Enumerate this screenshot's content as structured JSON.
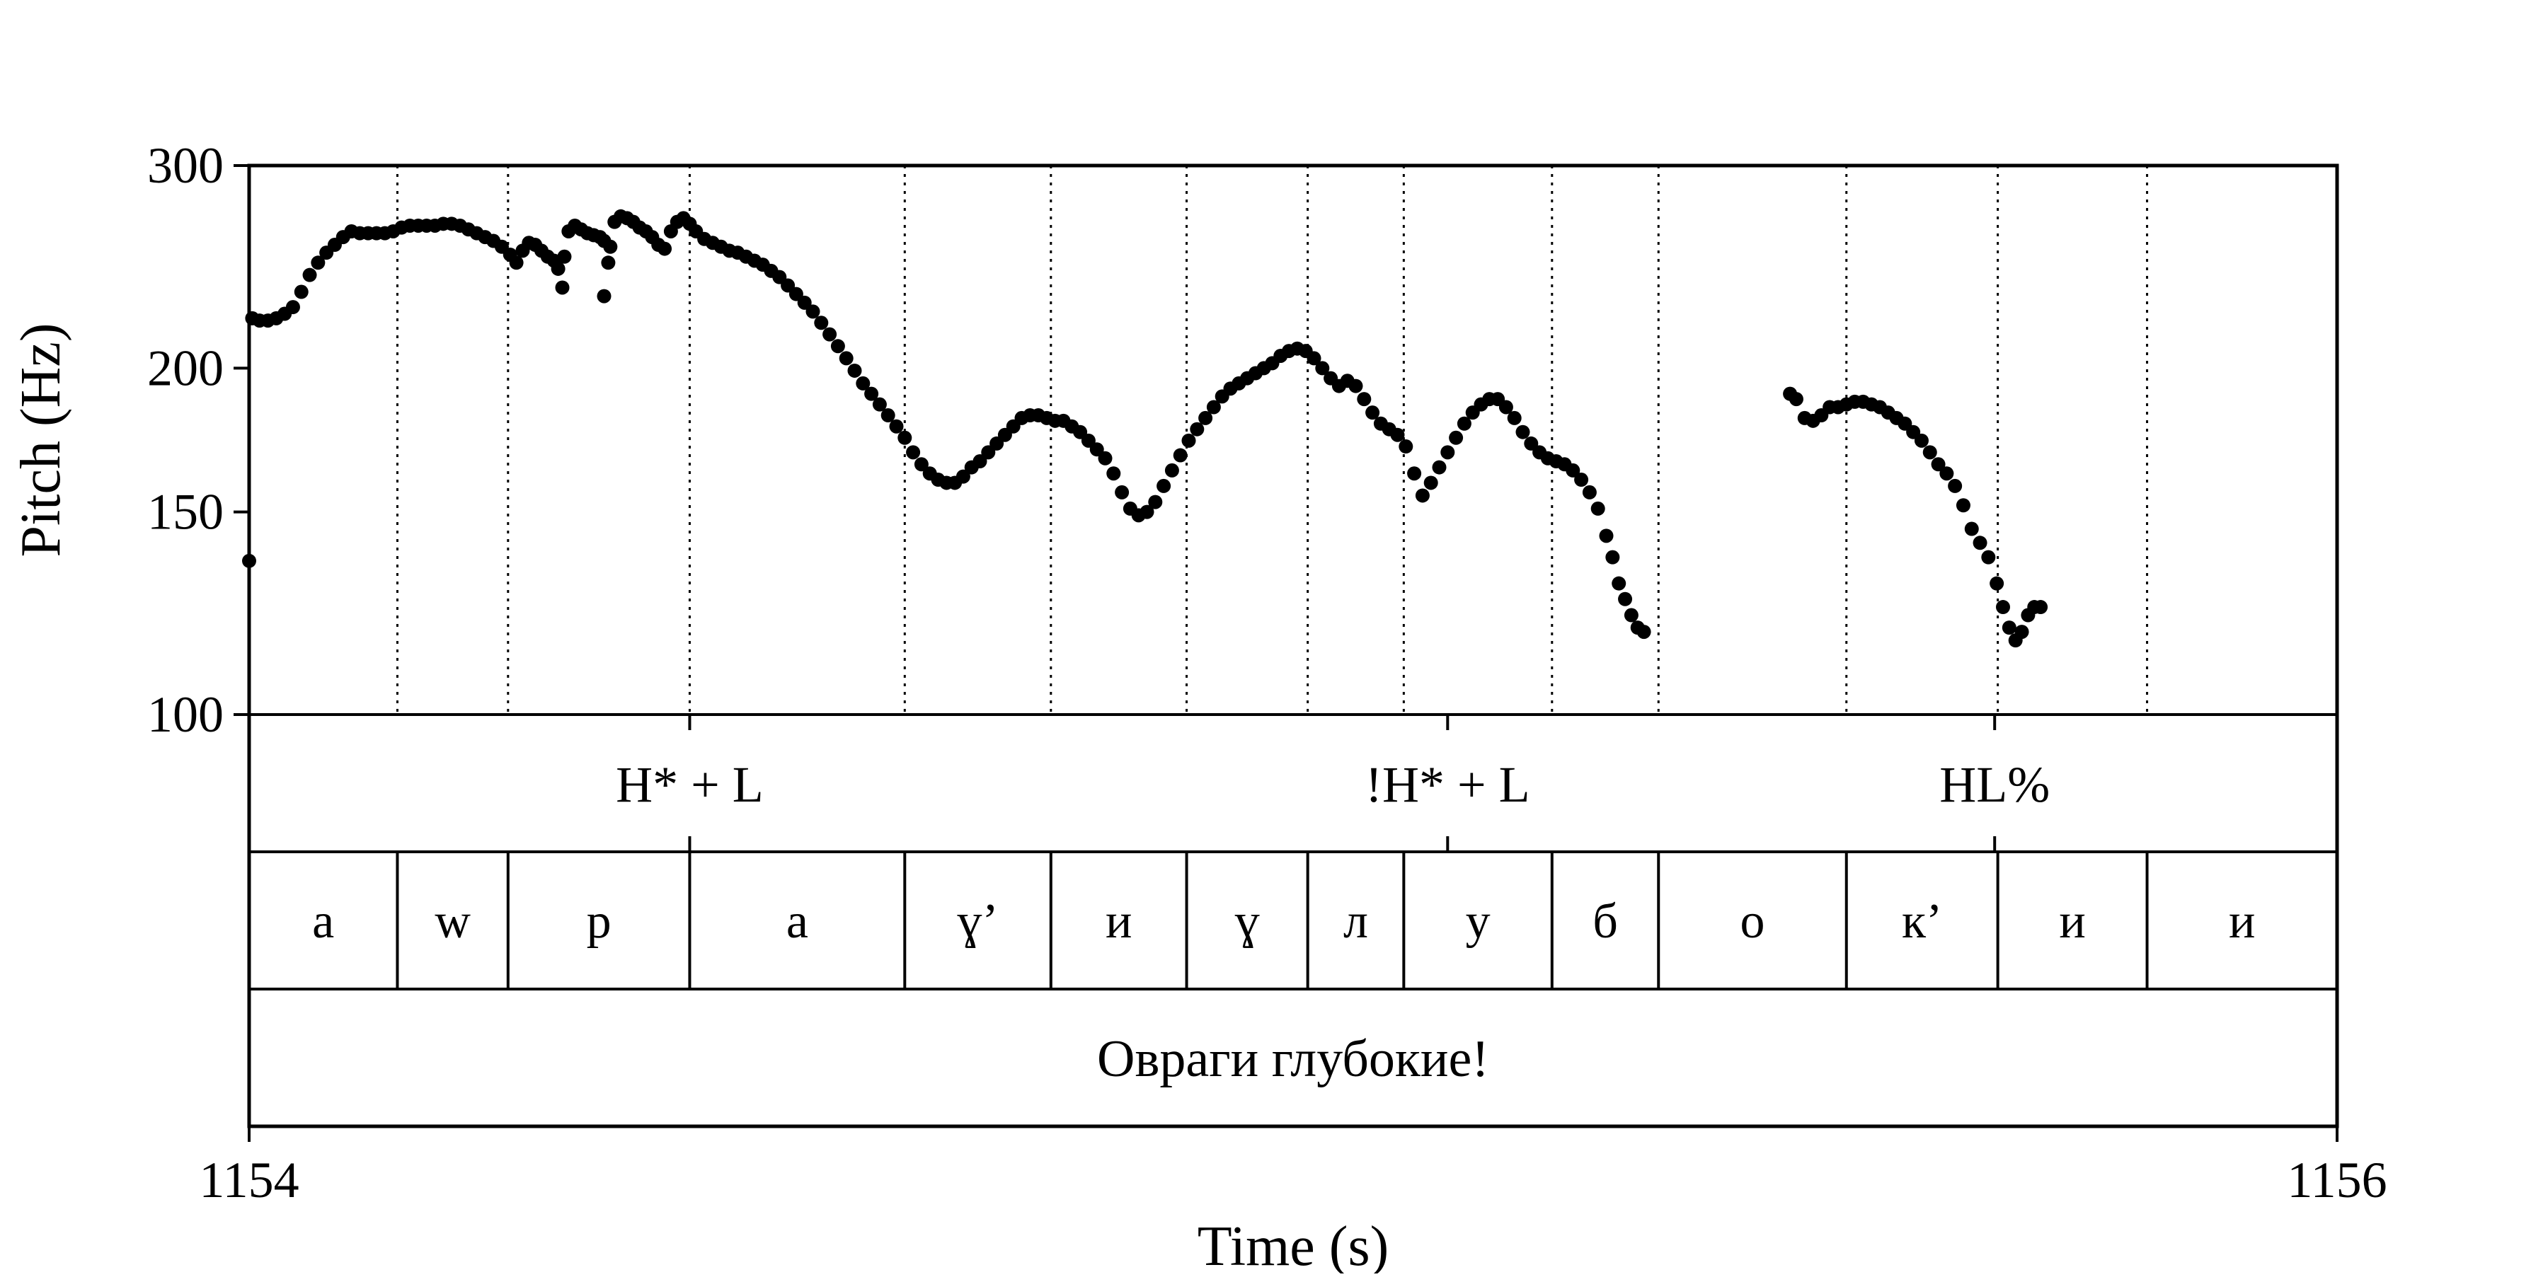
{
  "chart_data": {
    "type": "scatter",
    "title": "",
    "xlabel": "Time (s)",
    "ylabel": "Pitch (Hz)",
    "xlim": [
      1154,
      1156
    ],
    "ylim": [
      100,
      300
    ],
    "y_scale": "log",
    "x_ticks": [
      1154,
      1156
    ],
    "x_tick_labels": [
      "1154",
      "1156"
    ],
    "y_ticks": [
      100,
      150,
      200,
      300
    ],
    "y_tick_labels": [
      "100",
      "150",
      "200",
      "300"
    ],
    "grid": "vertical dotted lines at segment boundaries",
    "series": [
      {
        "points": [
          [
            1154.0,
            136
          ],
          [
            1154.003,
            221
          ],
          [
            1154.01,
            220
          ],
          [
            1154.018,
            220
          ],
          [
            1154.026,
            221
          ],
          [
            1154.034,
            223
          ],
          [
            1154.042,
            226
          ],
          [
            1154.05,
            233
          ],
          [
            1154.058,
            241
          ],
          [
            1154.066,
            247
          ],
          [
            1154.074,
            252
          ],
          [
            1154.082,
            256
          ],
          [
            1154.09,
            260
          ],
          [
            1154.098,
            263
          ],
          [
            1154.106,
            262
          ],
          [
            1154.114,
            262
          ],
          [
            1154.122,
            262
          ],
          [
            1154.13,
            262
          ],
          [
            1154.138,
            263
          ],
          [
            1154.146,
            265
          ],
          [
            1154.154,
            266
          ],
          [
            1154.162,
            266
          ],
          [
            1154.17,
            266
          ],
          [
            1154.178,
            266
          ],
          [
            1154.186,
            267
          ],
          [
            1154.194,
            267
          ],
          [
            1154.202,
            266
          ],
          [
            1154.21,
            264
          ],
          [
            1154.218,
            262
          ],
          [
            1154.226,
            260
          ],
          [
            1154.234,
            258
          ],
          [
            1154.242,
            255
          ],
          [
            1154.25,
            251
          ],
          [
            1154.256,
            247
          ],
          [
            1154.262,
            253
          ],
          [
            1154.268,
            257
          ],
          [
            1154.274,
            256
          ],
          [
            1154.28,
            253
          ],
          [
            1154.286,
            250
          ],
          [
            1154.292,
            248
          ],
          [
            1154.296,
            244
          ],
          [
            1154.3,
            235
          ],
          [
            1154.302,
            250
          ],
          [
            1154.306,
            263
          ],
          [
            1154.312,
            266
          ],
          [
            1154.318,
            264
          ],
          [
            1154.324,
            262
          ],
          [
            1154.33,
            261
          ],
          [
            1154.336,
            260
          ],
          [
            1154.34,
            258
          ],
          [
            1154.34,
            231
          ],
          [
            1154.344,
            247
          ],
          [
            1154.346,
            255
          ],
          [
            1154.35,
            268
          ],
          [
            1154.356,
            271
          ],
          [
            1154.362,
            270
          ],
          [
            1154.368,
            268
          ],
          [
            1154.374,
            265
          ],
          [
            1154.38,
            263
          ],
          [
            1154.386,
            260
          ],
          [
            1154.392,
            256
          ],
          [
            1154.398,
            254
          ],
          [
            1154.404,
            263
          ],
          [
            1154.41,
            268
          ],
          [
            1154.416,
            270
          ],
          [
            1154.422,
            267
          ],
          [
            1154.428,
            263
          ],
          [
            1154.436,
            259
          ],
          [
            1154.444,
            257
          ],
          [
            1154.452,
            255
          ],
          [
            1154.46,
            253
          ],
          [
            1154.468,
            252
          ],
          [
            1154.476,
            250
          ],
          [
            1154.484,
            248
          ],
          [
            1154.492,
            246
          ],
          [
            1154.5,
            243
          ],
          [
            1154.508,
            240
          ],
          [
            1154.516,
            236
          ],
          [
            1154.524,
            232
          ],
          [
            1154.532,
            228
          ],
          [
            1154.54,
            224
          ],
          [
            1154.548,
            219
          ],
          [
            1154.556,
            214
          ],
          [
            1154.564,
            209
          ],
          [
            1154.572,
            204
          ],
          [
            1154.58,
            199
          ],
          [
            1154.588,
            194
          ],
          [
            1154.596,
            190
          ],
          [
            1154.604,
            186
          ],
          [
            1154.612,
            182
          ],
          [
            1154.62,
            178
          ],
          [
            1154.628,
            174
          ],
          [
            1154.636,
            169
          ],
          [
            1154.644,
            165
          ],
          [
            1154.652,
            162
          ],
          [
            1154.66,
            160
          ],
          [
            1154.668,
            159
          ],
          [
            1154.676,
            159
          ],
          [
            1154.684,
            161
          ],
          [
            1154.692,
            164
          ],
          [
            1154.7,
            166
          ],
          [
            1154.708,
            169
          ],
          [
            1154.716,
            172
          ],
          [
            1154.724,
            175
          ],
          [
            1154.732,
            178
          ],
          [
            1154.74,
            181
          ],
          [
            1154.748,
            182
          ],
          [
            1154.756,
            182
          ],
          [
            1154.764,
            181
          ],
          [
            1154.772,
            180
          ],
          [
            1154.78,
            180
          ],
          [
            1154.788,
            178
          ],
          [
            1154.796,
            176
          ],
          [
            1154.804,
            173
          ],
          [
            1154.812,
            170
          ],
          [
            1154.82,
            167
          ],
          [
            1154.828,
            162
          ],
          [
            1154.836,
            156
          ],
          [
            1154.844,
            151
          ],
          [
            1154.852,
            149
          ],
          [
            1154.86,
            150
          ],
          [
            1154.868,
            153
          ],
          [
            1154.876,
            158
          ],
          [
            1154.884,
            163
          ],
          [
            1154.892,
            168
          ],
          [
            1154.9,
            173
          ],
          [
            1154.908,
            177
          ],
          [
            1154.916,
            181
          ],
          [
            1154.924,
            185
          ],
          [
            1154.932,
            189
          ],
          [
            1154.94,
            192
          ],
          [
            1154.948,
            194
          ],
          [
            1154.956,
            196
          ],
          [
            1154.964,
            198
          ],
          [
            1154.972,
            200
          ],
          [
            1154.98,
            202
          ],
          [
            1154.988,
            205
          ],
          [
            1154.996,
            207
          ],
          [
            1155.004,
            208
          ],
          [
            1155.012,
            207
          ],
          [
            1155.02,
            204
          ],
          [
            1155.028,
            200
          ],
          [
            1155.036,
            196
          ],
          [
            1155.044,
            193
          ],
          [
            1155.052,
            195
          ],
          [
            1155.06,
            193
          ],
          [
            1155.068,
            188
          ],
          [
            1155.076,
            183
          ],
          [
            1155.084,
            179
          ],
          [
            1155.092,
            177
          ],
          [
            1155.1,
            175
          ],
          [
            1155.108,
            171
          ],
          [
            1155.116,
            162
          ],
          [
            1155.124,
            155
          ],
          [
            1155.132,
            159
          ],
          [
            1155.14,
            164
          ],
          [
            1155.148,
            169
          ],
          [
            1155.156,
            174
          ],
          [
            1155.164,
            179
          ],
          [
            1155.172,
            183
          ],
          [
            1155.18,
            186
          ],
          [
            1155.188,
            188
          ],
          [
            1155.196,
            188
          ],
          [
            1155.204,
            185
          ],
          [
            1155.212,
            181
          ],
          [
            1155.22,
            176
          ],
          [
            1155.228,
            172
          ],
          [
            1155.236,
            169
          ],
          [
            1155.244,
            167
          ],
          [
            1155.252,
            166
          ],
          [
            1155.26,
            165
          ],
          [
            1155.268,
            163
          ],
          [
            1155.276,
            160
          ],
          [
            1155.284,
            156
          ],
          [
            1155.292,
            151
          ],
          [
            1155.3,
            143
          ],
          [
            1155.306,
            137
          ],
          [
            1155.312,
            130
          ],
          [
            1155.318,
            126
          ],
          [
            1155.324,
            122
          ],
          [
            1155.33,
            119
          ],
          [
            1155.336,
            118
          ],
          [
            1155.476,
            190
          ],
          [
            1155.482,
            188
          ],
          [
            1155.49,
            181
          ],
          [
            1155.498,
            180
          ],
          [
            1155.506,
            182
          ],
          [
            1155.514,
            185
          ],
          [
            1155.522,
            185
          ],
          [
            1155.53,
            186
          ],
          [
            1155.538,
            187
          ],
          [
            1155.546,
            187
          ],
          [
            1155.554,
            186
          ],
          [
            1155.562,
            185
          ],
          [
            1155.57,
            183
          ],
          [
            1155.578,
            181
          ],
          [
            1155.586,
            179
          ],
          [
            1155.594,
            176
          ],
          [
            1155.602,
            173
          ],
          [
            1155.61,
            169
          ],
          [
            1155.618,
            165
          ],
          [
            1155.626,
            162
          ],
          [
            1155.634,
            158
          ],
          [
            1155.642,
            152
          ],
          [
            1155.65,
            145
          ],
          [
            1155.658,
            141
          ],
          [
            1155.666,
            137
          ],
          [
            1155.674,
            130
          ],
          [
            1155.68,
            124
          ],
          [
            1155.686,
            119
          ],
          [
            1155.692,
            116
          ],
          [
            1155.698,
            118
          ],
          [
            1155.704,
            122
          ],
          [
            1155.71,
            124
          ],
          [
            1155.716,
            124
          ]
        ]
      }
    ],
    "tiers": {
      "tones": {
        "boundaries": [
          1154.422,
          1155.148,
          1155.672
        ],
        "labels": [
          {
            "x": 1154.422,
            "text": "H* + L"
          },
          {
            "x": 1155.148,
            "text": "!H* + L"
          },
          {
            "x": 1155.672,
            "text": "HL%"
          }
        ]
      },
      "segments": {
        "boundaries": [
          1154.0,
          1154.142,
          1154.248,
          1154.422,
          1154.628,
          1154.768,
          1154.898,
          1155.014,
          1155.106,
          1155.248,
          1155.35,
          1155.53,
          1155.675,
          1155.818,
          1156.0
        ],
        "labels": [
          "а",
          "w",
          "р",
          "а",
          "ɣ’",
          "и",
          "ɣ",
          "л",
          "у",
          "б",
          "о",
          "к’",
          "и",
          "и"
        ]
      },
      "sentence": {
        "text": "Овраги глубокие!"
      }
    }
  }
}
